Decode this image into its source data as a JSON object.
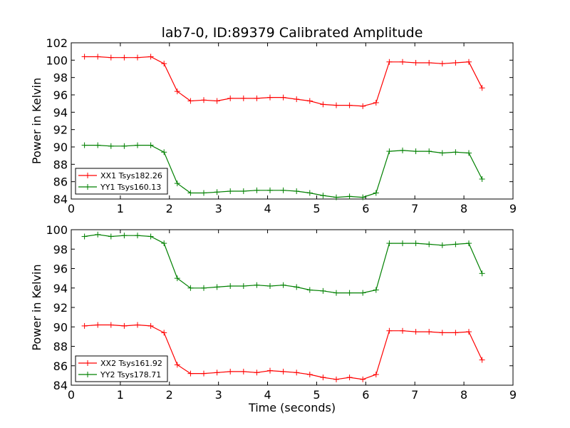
{
  "figure": {
    "title": "lab7-0, ID:89379 Calibrated Amplitude"
  },
  "chart_data": [
    {
      "type": "line",
      "title": "lab7-0, ID:89379 Calibrated Amplitude",
      "xlabel": "",
      "ylabel": "Power in Kelvin",
      "xlim": [
        0,
        9
      ],
      "ylim": [
        84,
        102
      ],
      "xticks": [
        0,
        1,
        2,
        3,
        4,
        5,
        6,
        7,
        8,
        9
      ],
      "yticks": [
        84,
        86,
        88,
        90,
        92,
        94,
        96,
        98,
        100,
        102
      ],
      "grid": false,
      "legend_position": "lower-left",
      "x": [
        0.27,
        0.54,
        0.81,
        1.08,
        1.35,
        1.62,
        1.89,
        2.16,
        2.43,
        2.7,
        2.97,
        3.24,
        3.51,
        3.78,
        4.05,
        4.32,
        4.59,
        4.86,
        5.13,
        5.4,
        5.67,
        5.94,
        6.21,
        6.48,
        6.75,
        7.02,
        7.29,
        7.56,
        7.83,
        8.1,
        8.37
      ],
      "series": [
        {
          "name": "XX1 Tsys182.26",
          "color": "#ff0000",
          "marker": "+",
          "values": [
            100.4,
            100.4,
            100.3,
            100.3,
            100.3,
            100.4,
            99.6,
            96.4,
            95.3,
            95.4,
            95.3,
            95.6,
            95.6,
            95.6,
            95.7,
            95.7,
            95.5,
            95.3,
            94.9,
            94.8,
            94.8,
            94.7,
            95.1,
            99.8,
            99.8,
            99.7,
            99.7,
            99.6,
            99.7,
            99.8,
            96.8
          ]
        },
        {
          "name": "YY1 Tsys160.13",
          "color": "#008000",
          "marker": "+",
          "values": [
            90.2,
            90.2,
            90.1,
            90.1,
            90.2,
            90.2,
            89.4,
            85.8,
            84.7,
            84.7,
            84.8,
            84.9,
            84.9,
            85.0,
            85.0,
            85.0,
            84.9,
            84.7,
            84.4,
            84.2,
            84.3,
            84.2,
            84.7,
            89.5,
            89.6,
            89.5,
            89.5,
            89.3,
            89.4,
            89.3,
            86.3
          ]
        }
      ]
    },
    {
      "type": "line",
      "title": "",
      "xlabel": "Time (seconds)",
      "ylabel": "Power in Kelvin",
      "xlim": [
        0,
        9
      ],
      "ylim": [
        84,
        100
      ],
      "xticks": [
        0,
        1,
        2,
        3,
        4,
        5,
        6,
        7,
        8,
        9
      ],
      "yticks": [
        84,
        86,
        88,
        90,
        92,
        94,
        96,
        98,
        100
      ],
      "grid": false,
      "legend_position": "lower-left",
      "x": [
        0.27,
        0.54,
        0.81,
        1.08,
        1.35,
        1.62,
        1.89,
        2.16,
        2.43,
        2.7,
        2.97,
        3.24,
        3.51,
        3.78,
        4.05,
        4.32,
        4.59,
        4.86,
        5.13,
        5.4,
        5.67,
        5.94,
        6.21,
        6.48,
        6.75,
        7.02,
        7.29,
        7.56,
        7.83,
        8.1,
        8.37
      ],
      "series": [
        {
          "name": "XX2 Tsys161.92",
          "color": "#ff0000",
          "marker": "+",
          "values": [
            90.1,
            90.2,
            90.2,
            90.1,
            90.2,
            90.1,
            89.4,
            86.1,
            85.2,
            85.2,
            85.3,
            85.4,
            85.4,
            85.3,
            85.5,
            85.4,
            85.3,
            85.1,
            84.8,
            84.6,
            84.8,
            84.6,
            85.1,
            89.6,
            89.6,
            89.5,
            89.5,
            89.4,
            89.4,
            89.5,
            86.6
          ]
        },
        {
          "name": "YY2 Tsys178.71",
          "color": "#008000",
          "marker": "+",
          "values": [
            99.3,
            99.5,
            99.3,
            99.4,
            99.4,
            99.3,
            98.6,
            95.0,
            94.0,
            94.0,
            94.1,
            94.2,
            94.2,
            94.3,
            94.2,
            94.3,
            94.1,
            93.8,
            93.7,
            93.5,
            93.5,
            93.5,
            93.8,
            98.6,
            98.6,
            98.6,
            98.5,
            98.4,
            98.5,
            98.6,
            95.5
          ]
        }
      ]
    }
  ]
}
